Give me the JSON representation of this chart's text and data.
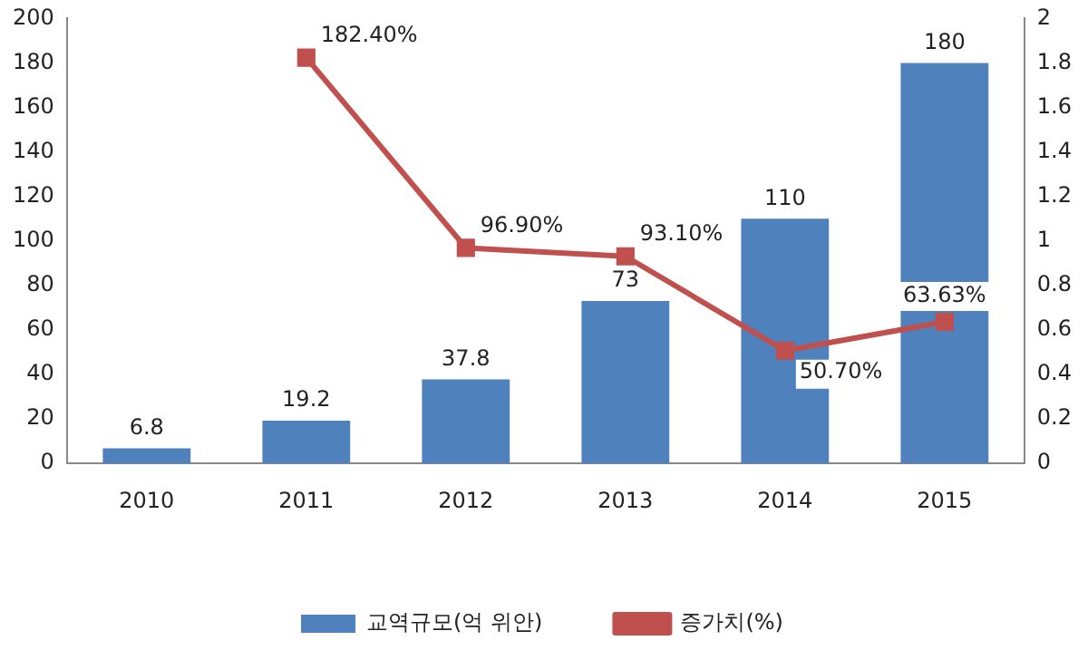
{
  "chart_data": {
    "type": "bar",
    "categories": [
      "2010",
      "2011",
      "2012",
      "2013",
      "2014",
      "2015"
    ],
    "series": [
      {
        "name": "교역규모(억 위안)",
        "color": "#4f81bd",
        "values": [
          6.8,
          19.2,
          37.8,
          73,
          110,
          180
        ],
        "value_labels": [
          "6.8",
          "19.2",
          "37.8",
          "73",
          "110",
          "180"
        ]
      },
      {
        "type": "line",
        "axis": "y2",
        "name": "증가치(%)",
        "color": "#c0504d",
        "values": [
          null,
          1.824,
          0.969,
          0.931,
          0.507,
          0.6363
        ],
        "value_labels": [
          null,
          "182.40%",
          "96.90%",
          "93.10%",
          "50.70%",
          "63.63%"
        ]
      }
    ],
    "ylim": [
      0,
      200
    ],
    "yticks": [
      0,
      20,
      40,
      60,
      80,
      100,
      120,
      140,
      160,
      180,
      200
    ],
    "y2lim": [
      0,
      2
    ],
    "y2ticks": [
      0,
      0.2,
      0.4,
      0.6,
      0.8,
      1,
      1.2,
      1.4,
      1.6,
      1.8,
      2
    ],
    "grid": false,
    "legend": "bottom",
    "marker": "square",
    "line_style": "solid"
  }
}
